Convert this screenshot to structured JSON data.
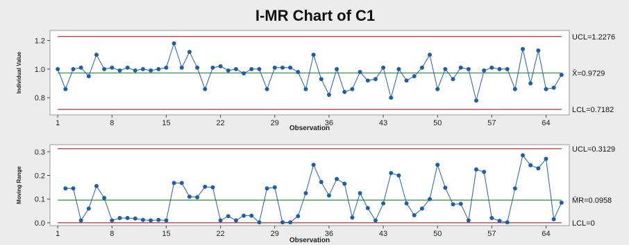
{
  "chart_data": {
    "title": "I-MR Chart of C1",
    "x_ticks": [
      1,
      8,
      15,
      22,
      29,
      36,
      43,
      50,
      57,
      64
    ],
    "x_range": [
      0,
      67
    ],
    "panels": [
      {
        "type": "line",
        "name": "individual",
        "ylabel": "Individual Value",
        "xlabel": "Observation",
        "ylim": [
          0.68,
          1.27
        ],
        "y_ticks": [
          {
            "v": 0.8,
            "label": "0.8"
          },
          {
            "v": 1.0,
            "label": "1.0"
          },
          {
            "v": 1.2,
            "label": "1.2"
          }
        ],
        "ucl": 1.2276,
        "center": 0.9729,
        "lcl": 0.7182,
        "ucl_label": "UCL=1.2276",
        "center_label": "X̄=0.9729",
        "lcl_label": "LCL=0.7182",
        "values": [
          1.0,
          0.86,
          1.0,
          1.01,
          0.95,
          1.1,
          1.0,
          1.01,
          0.99,
          1.01,
          0.99,
          1.0,
          0.99,
          1.0,
          1.01,
          1.18,
          1.01,
          1.12,
          1.01,
          0.86,
          1.01,
          1.02,
          0.99,
          1.0,
          0.97,
          1.0,
          1.0,
          0.86,
          1.01,
          1.01,
          1.01,
          0.98,
          0.86,
          1.1,
          0.93,
          0.82,
          1.0,
          0.84,
          0.86,
          0.98,
          0.92,
          0.93,
          1.01,
          0.8,
          1.0,
          0.92,
          0.95,
          1.01,
          1.1,
          0.86,
          1.0,
          0.93,
          1.01,
          1.0,
          0.78,
          0.99,
          1.01,
          1.0,
          1.0,
          0.86,
          1.14,
          0.9,
          1.13,
          0.86,
          0.87,
          0.96
        ]
      },
      {
        "type": "line",
        "name": "moving-range",
        "ylabel": "Moving Range",
        "xlabel": "Observation",
        "ylim": [
          -0.012,
          0.33
        ],
        "y_ticks": [
          {
            "v": 0.0,
            "label": "0.0"
          },
          {
            "v": 0.1,
            "label": "0.1"
          },
          {
            "v": 0.2,
            "label": "0.2"
          },
          {
            "v": 0.3,
            "label": "0.3"
          }
        ],
        "ucl": 0.3129,
        "center": 0.0958,
        "lcl": 0,
        "ucl_label": "UCL=0.3129",
        "center_label": "M̄R=0.0958",
        "lcl_label": "LCL=0",
        "x_start": 2,
        "values": [
          0.145,
          0.145,
          0.01,
          0.06,
          0.155,
          0.105,
          0.01,
          0.02,
          0.02,
          0.018,
          0.012,
          0.01,
          0.012,
          0.01,
          0.168,
          0.168,
          0.11,
          0.108,
          0.152,
          0.15,
          0.01,
          0.028,
          0.01,
          0.03,
          0.03,
          0.002,
          0.145,
          0.15,
          0.002,
          0.002,
          0.028,
          0.125,
          0.245,
          0.172,
          0.115,
          0.185,
          0.165,
          0.022,
          0.125,
          0.062,
          0.01,
          0.082,
          0.21,
          0.2,
          0.082,
          0.032,
          0.06,
          0.1,
          0.245,
          0.148,
          0.078,
          0.08,
          0.01,
          0.225,
          0.215,
          0.02,
          0.008,
          0.002,
          0.145,
          0.285,
          0.243,
          0.23,
          0.27,
          0.015,
          0.085
        ]
      }
    ]
  },
  "colors": {
    "limit_line": "#b03030",
    "center_line": "#2e8b3a",
    "series": "#1f5fa8",
    "marker": "#1f5fa8",
    "frame": "#9a9a9a",
    "plot_bg": "#ffffff"
  }
}
